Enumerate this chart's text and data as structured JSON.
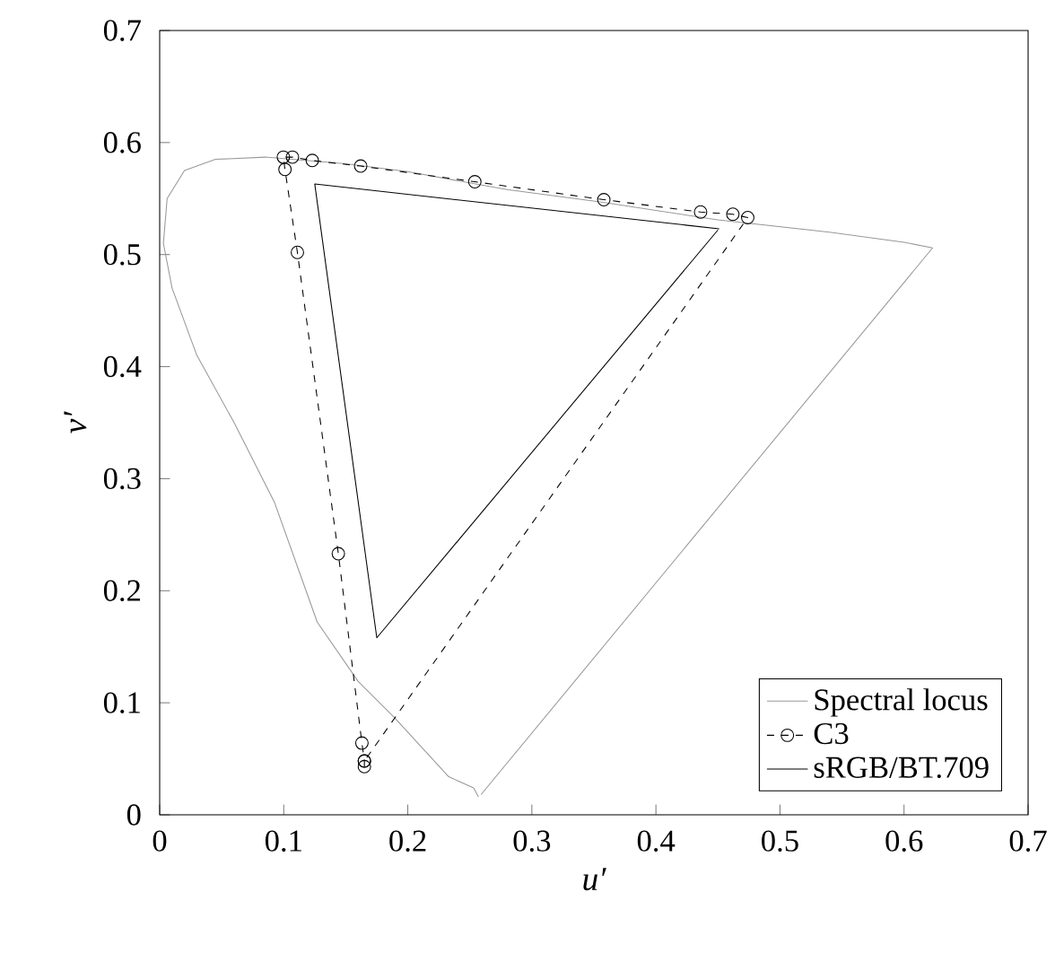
{
  "chart_data": {
    "type": "line",
    "xlabel": "u′",
    "ylabel": "v′",
    "xlim": [
      0,
      0.7
    ],
    "ylim": [
      0,
      0.7
    ],
    "xticks": [
      0,
      0.1,
      0.2,
      0.3,
      0.4,
      0.5,
      0.6,
      0.7
    ],
    "yticks": [
      0,
      0.1,
      0.2,
      0.3,
      0.4,
      0.5,
      0.6,
      0.7
    ],
    "grid": false,
    "legend": "bottom right",
    "series": [
      {
        "name": "Spectral locus",
        "color": "#999999",
        "line_style": "solid",
        "marker": "none",
        "x": [
          0.257,
          0.253,
          0.233,
          0.189,
          0.16,
          0.127,
          0.0925,
          0.06,
          0.03,
          0.01,
          0.003,
          0.006,
          0.02,
          0.045,
          0.085,
          0.15,
          0.2,
          0.28,
          0.355,
          0.45,
          0.54,
          0.6,
          0.623,
          0.259
        ],
        "values": [
          0.016,
          0.024,
          0.034,
          0.087,
          0.119,
          0.172,
          0.279,
          0.35,
          0.41,
          0.47,
          0.51,
          0.55,
          0.575,
          0.585,
          0.587,
          0.581,
          0.574,
          0.558,
          0.547,
          0.531,
          0.52,
          0.511,
          0.506,
          0.018
        ]
      },
      {
        "name": "C3",
        "color": "#000000",
        "line_style": "dashed",
        "marker": "circle",
        "x": [
          0.165,
          0.165,
          0.163,
          0.144,
          0.111,
          0.101,
          0.0997,
          0.107,
          0.123,
          0.162,
          0.254,
          0.358,
          0.436,
          0.462,
          0.474,
          0.165
        ],
        "values": [
          0.043,
          0.048,
          0.064,
          0.233,
          0.502,
          0.576,
          0.587,
          0.587,
          0.584,
          0.579,
          0.565,
          0.549,
          0.538,
          0.536,
          0.533,
          0.048
        ]
      },
      {
        "name": "sRGB/BT.709",
        "color": "#000000",
        "line_style": "solid",
        "marker": "none",
        "x": [
          0.451,
          0.125,
          0.175,
          0.45
        ],
        "values": [
          0.523,
          0.563,
          0.158,
          0.522
        ]
      }
    ]
  }
}
